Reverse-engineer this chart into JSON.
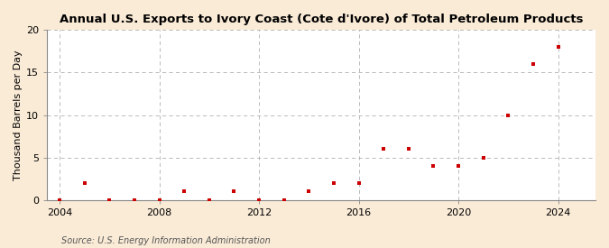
{
  "title": "Annual U.S. Exports to Ivory Coast (Cote d'Ivore) of Total Petroleum Products",
  "ylabel": "Thousand Barrels per Day",
  "source": "Source: U.S. Energy Information Administration",
  "figure_bg": "#faebd7",
  "plot_bg": "#ffffff",
  "marker_color": "#cc0000",
  "grid_color": "#b0b0b0",
  "years": [
    2004,
    2005,
    2006,
    2007,
    2008,
    2009,
    2010,
    2011,
    2012,
    2013,
    2014,
    2015,
    2016,
    2017,
    2018,
    2019,
    2020,
    2021,
    2022,
    2023,
    2024
  ],
  "values": [
    0,
    2,
    0,
    0,
    0,
    1,
    0,
    1,
    0,
    0,
    1,
    2,
    2,
    6,
    6,
    4,
    4,
    5,
    10,
    16,
    18
  ],
  "xlim": [
    2003.5,
    2025.5
  ],
  "ylim": [
    0,
    20
  ],
  "yticks": [
    0,
    5,
    10,
    15,
    20
  ],
  "xticks": [
    2004,
    2008,
    2012,
    2016,
    2020,
    2024
  ],
  "title_fontsize": 9.5,
  "tick_fontsize": 8,
  "ylabel_fontsize": 8,
  "source_fontsize": 7
}
